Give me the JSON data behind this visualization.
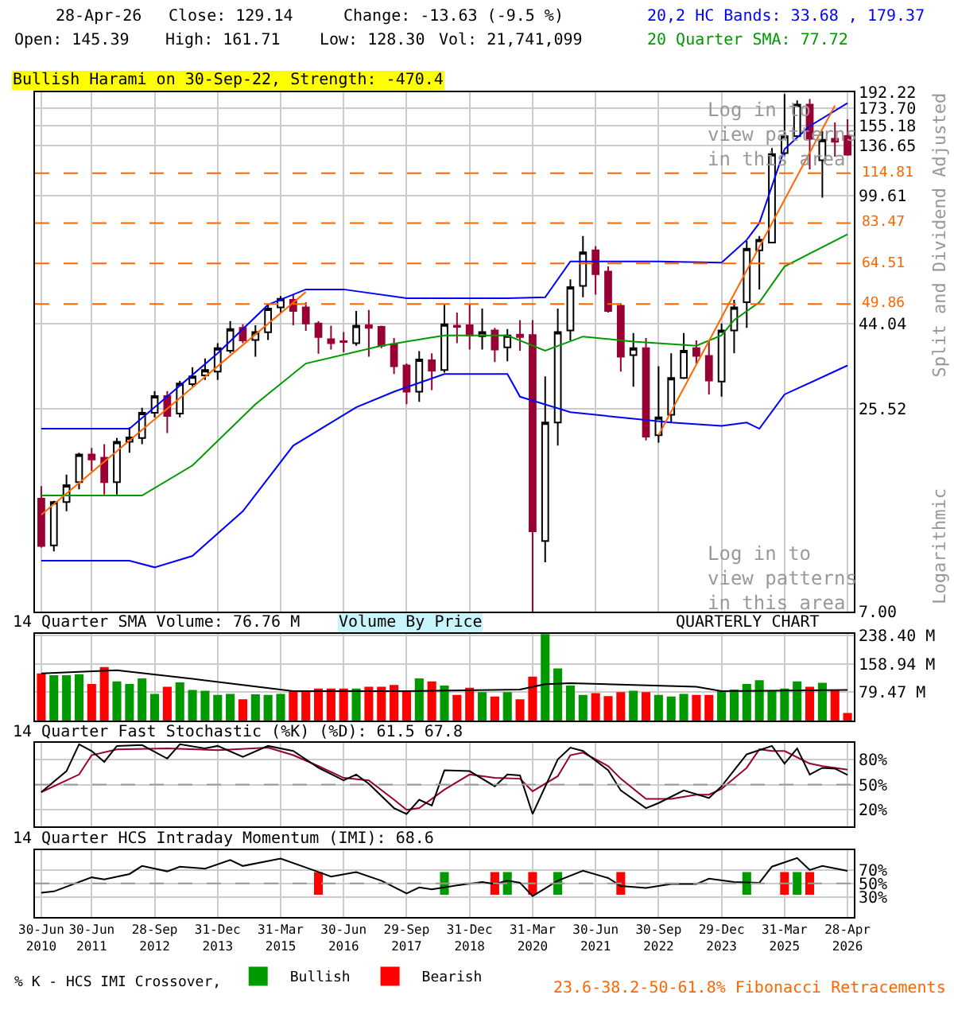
{
  "chart_data": [
    {
      "type": "candlestick",
      "title": "Bullish Harami on 30-Sep-22, Strength: -470.4",
      "ylabel": "Split and Dividend Adjusted",
      "ohlc": [
        [
          14.4,
          15.6,
          10.55,
          10.65
        ],
        [
          10.7,
          14.2,
          10.3,
          14.1
        ],
        [
          14.1,
          16.8,
          13.3,
          15.7
        ],
        [
          16.0,
          19.3,
          15.3,
          19.1
        ],
        [
          19.1,
          19.9,
          17.2,
          18.5
        ],
        [
          18.7,
          20.4,
          14.8,
          16.0
        ],
        [
          16.0,
          21.2,
          14.8,
          20.7
        ],
        [
          20.7,
          22.7,
          19.3,
          21.3
        ],
        [
          21.2,
          25.7,
          20.4,
          24.9
        ],
        [
          24.9,
          28.6,
          24.2,
          27.7
        ],
        [
          27.7,
          28.6,
          21.9,
          24.4
        ],
        [
          24.8,
          30.5,
          24.2,
          30.0
        ],
        [
          29.9,
          33.3,
          29.5,
          31.4
        ],
        [
          31.6,
          35.2,
          30.7,
          32.7
        ],
        [
          32.4,
          38.8,
          30.7,
          37.6
        ],
        [
          37.0,
          44.7,
          36.4,
          42.5
        ],
        [
          42.8,
          43.8,
          38.8,
          39.5
        ],
        [
          39.6,
          43.5,
          35.6,
          41.7
        ],
        [
          41.6,
          49.6,
          39.6,
          48.4
        ],
        [
          48.8,
          52.4,
          47.2,
          51.5
        ],
        [
          51.2,
          52.9,
          43.5,
          47.7
        ],
        [
          48.8,
          50.4,
          42.0,
          44.0
        ],
        [
          44.0,
          44.7,
          36.3,
          40.4
        ],
        [
          39.8,
          43.4,
          37.3,
          38.8
        ],
        [
          39.3,
          41.7,
          36.6,
          39.1
        ],
        [
          38.8,
          47.7,
          38.2,
          43.4
        ],
        [
          43.5,
          48.0,
          35.6,
          42.8
        ],
        [
          43.1,
          43.4,
          37.6,
          38.2
        ],
        [
          38.6,
          40.1,
          31.9,
          33.5
        ],
        [
          33.7,
          34.1,
          26.3,
          28.5
        ],
        [
          28.5,
          36.9,
          26.7,
          35.0
        ],
        [
          34.8,
          36.4,
          28.8,
          32.6
        ],
        [
          32.7,
          49.6,
          32.2,
          43.8
        ],
        [
          43.4,
          47.2,
          38.8,
          43.1
        ],
        [
          43.5,
          49.9,
          37.3,
          40.8
        ],
        [
          40.6,
          48.4,
          37.3,
          41.7
        ],
        [
          42.1,
          42.8,
          34.4,
          37.3
        ],
        [
          37.8,
          42.5,
          34.6,
          40.8
        ],
        [
          41.0,
          45.0,
          37.0,
          40.4
        ],
        [
          40.9,
          45.0,
          7.0,
          11.7
        ],
        [
          11.0,
          31.4,
          9.6,
          23.4
        ],
        [
          23.4,
          48.4,
          20.2,
          41.7
        ],
        [
          42.1,
          58.3,
          39.5,
          55.5
        ],
        [
          55.9,
          76.9,
          52.0,
          69.3
        ],
        [
          70.2,
          72.1,
          52.9,
          60.3
        ],
        [
          61.3,
          63.3,
          47.2,
          47.7
        ],
        [
          49.3,
          50.1,
          32.4,
          35.6
        ],
        [
          36.0,
          41.4,
          29.4,
          37.6
        ],
        [
          37.6,
          40.1,
          20.9,
          21.4
        ],
        [
          21.6,
          33.5,
          20.6,
          24.2
        ],
        [
          24.6,
          36.4,
          23.4,
          31.1
        ],
        [
          31.1,
          41.4,
          30.9,
          37.0
        ],
        [
          37.6,
          39.5,
          34.1,
          35.8
        ],
        [
          35.8,
          39.5,
          28.0,
          30.6
        ],
        [
          30.4,
          44.0,
          27.6,
          42.1
        ],
        [
          42.1,
          51.2,
          36.4,
          48.8
        ],
        [
          50.4,
          74.5,
          42.8,
          70.9
        ],
        [
          70.2,
          76.9,
          54.7,
          75.0
        ],
        [
          73.7,
          134.7,
          73.7,
          129.6
        ],
        [
          130.5,
          190,
          127.5,
          145.3
        ],
        [
          145.3,
          182.4,
          143.8,
          177.8
        ],
        [
          177.8,
          184.2,
          117.5,
          142.9
        ],
        [
          124.6,
          150.1,
          98.2,
          142.0
        ],
        [
          142.9,
          158.6,
          127.5,
          140.2
        ],
        [
          145.39,
          161.71,
          128.3,
          129.14
        ]
      ],
      "series": [
        {
          "type": "line",
          "color": "#0000ff",
          "values": [
            22.5,
            null,
            null,
            null,
            null,
            null,
            null,
            22.5,
            null,
            25.8,
            null,
            null,
            null,
            null,
            36.4,
            null,
            null,
            null,
            49.6,
            null,
            null,
            54.7,
            null,
            null,
            54.7,
            null,
            null,
            null,
            null,
            51.7,
            null,
            null,
            null,
            null,
            null,
            null,
            null,
            51.7,
            null,
            null,
            52.0,
            null,
            65.4,
            null,
            null,
            null,
            null,
            null,
            null,
            65.4,
            null,
            null,
            null,
            null,
            64.9,
            null,
            75.0,
            83.5,
            null,
            133.8,
            null,
            155,
            null,
            null,
            179.37
          ]
        },
        {
          "type": "line",
          "color": "#0000ff",
          "values": [
            9.7,
            null,
            null,
            null,
            null,
            null,
            null,
            9.7,
            null,
            9.3,
            null,
            null,
            10.0,
            null,
            null,
            null,
            13.3,
            null,
            null,
            null,
            20.2,
            null,
            null,
            null,
            null,
            25.8,
            null,
            null,
            28.5,
            null,
            null,
            null,
            31.9,
            null,
            null,
            null,
            null,
            31.9,
            27.6,
            null,
            null,
            null,
            25.0,
            null,
            null,
            null,
            null,
            null,
            null,
            null,
            23.4,
            null,
            null,
            null,
            22.9,
            null,
            23.4,
            22.5,
            null,
            28.0,
            null,
            null,
            null,
            null,
            33.68
          ]
        },
        {
          "type": "line",
          "color": "#009900",
          "values": [
            14.7,
            null,
            null,
            null,
            null,
            null,
            null,
            null,
            14.7,
            null,
            null,
            null,
            17.8,
            null,
            null,
            null,
            null,
            26.3,
            null,
            null,
            null,
            34.1,
            null,
            null,
            null,
            null,
            null,
            38.2,
            null,
            null,
            null,
            null,
            40.8,
            null,
            null,
            null,
            null,
            40.8,
            null,
            null,
            37.0,
            null,
            null,
            40.5,
            null,
            null,
            null,
            39.2,
            null,
            null,
            null,
            null,
            38.2,
            null,
            40.8,
            45.0,
            null,
            50.4,
            null,
            63.3,
            null,
            null,
            null,
            null,
            77.72
          ]
        },
        {
          "type": "line",
          "color": "#ff6600",
          "values": [
            13.0,
            null,
            null,
            null,
            null,
            null,
            null,
            null,
            null,
            null,
            null,
            null,
            null,
            null,
            null,
            null,
            null,
            null,
            null,
            null,
            null,
            53.8,
            null,
            null,
            null,
            null,
            null,
            null,
            null,
            null,
            null,
            null,
            null,
            null,
            null,
            null,
            null,
            null,
            null,
            null,
            null,
            null,
            null,
            null,
            null,
            null,
            null,
            null,
            null,
            null,
            null,
            null,
            null,
            null,
            null,
            null,
            null,
            null,
            null,
            null,
            null,
            null,
            null,
            null,
            null
          ]
        },
        {
          "type": "line",
          "color": "#ff6600",
          "values": [
            null,
            null,
            null,
            null,
            null,
            null,
            null,
            null,
            null,
            null,
            null,
            null,
            null,
            null,
            null,
            null,
            null,
            null,
            null,
            null,
            null,
            null,
            null,
            null,
            null,
            null,
            null,
            null,
            null,
            null,
            null,
            null,
            null,
            null,
            null,
            null,
            null,
            null,
            null,
            null,
            null,
            null,
            null,
            null,
            null,
            null,
            null,
            null,
            null,
            21.6,
            null,
            null,
            null,
            null,
            null,
            null,
            null,
            null,
            null,
            null,
            null,
            null,
            null,
            176.6,
            null
          ]
        }
      ],
      "log": true,
      "ylim": [
        7,
        192.22
      ],
      "yticks": [
        {
          "value": 7,
          "label": "7.00"
        },
        25.52,
        44.04,
        99.61,
        136.65,
        155.18,
        {
          "value": 173.7,
          "label": "173.70"
        },
        192.22
      ],
      "grid": true,
      "tick_labels": "y",
      "ref_lines": [
        {
          "axis": "y",
          "value": 114.81,
          "label": "114.81",
          "color": "#ff6600",
          "line_style": "dashed"
        },
        {
          "axis": "y",
          "value": 83.47,
          "label": "83.47",
          "color": "#ff6600",
          "line_style": "dashed"
        },
        {
          "axis": "y",
          "value": 64.51,
          "label": "64.51",
          "color": "#ff6600",
          "line_style": "dashed"
        },
        {
          "axis": "y",
          "value": 49.86,
          "label": "49.86",
          "color": "#ff6600",
          "line_style": "dashed"
        }
      ],
      "annotations": [
        "28-Apr-26",
        "Close: 129.14",
        "Change: -13.63 (-9.5 %)",
        "Open: 145.39",
        "High: 161.71",
        "Low: 128.30",
        "Vol: 21,741,099",
        "20,2 HC Bands: 33.68 , 179.37",
        "20 Quarter SMA: 77.72",
        "Log in to view patterns in this area",
        "Log in to view patterns in this area",
        "Logarithmic"
      ]
    },
    {
      "type": "bar",
      "title": "14 Quarter SMA Volume: 76.76 M",
      "series": [
        {
          "type": "bar",
          "values": [
            132,
            127,
            127,
            130,
            103,
            150,
            110,
            103,
            118,
            75,
            95,
            107,
            86,
            84,
            72,
            75,
            60,
            74,
            72,
            75,
            83,
            83,
            90,
            90,
            90,
            90,
            95,
            95,
            100,
            83,
            118,
            110,
            98,
            72,
            92,
            80,
            68,
            80,
            60,
            123,
            242,
            146,
            98,
            72,
            77,
            69,
            80,
            84,
            80,
            72,
            68,
            75,
            72,
            72,
            84,
            87,
            103,
            113,
            83,
            90,
            110,
            95,
            106,
            86,
            22
          ],
          "colors": [
            "#ff0000",
            "#009900",
            "#009900",
            "#009900",
            "#ff0000",
            "#ff0000",
            "#009900",
            "#009900",
            "#009900",
            "#009900",
            "#ff0000",
            "#009900",
            "#009900",
            "#009900",
            "#009900",
            "#009900",
            "#ff0000",
            "#009900",
            "#009900",
            "#009900",
            "#ff0000",
            "#ff0000",
            "#ff0000",
            "#ff0000",
            "#ff0000",
            "#009900",
            "#ff0000",
            "#ff0000",
            "#ff0000",
            "#ff0000",
            "#009900",
            "#ff0000",
            "#009900",
            "#ff0000",
            "#ff0000",
            "#009900",
            "#ff0000",
            "#009900",
            "#ff0000",
            "#ff0000",
            "#009900",
            "#009900",
            "#009900",
            "#009900",
            "#ff0000",
            "#ff0000",
            "#ff0000",
            "#009900",
            "#ff0000",
            "#009900",
            "#009900",
            "#009900",
            "#ff0000",
            "#ff0000",
            "#009900",
            "#009900",
            "#009900",
            "#009900",
            "#009900",
            "#009900",
            "#009900",
            "#ff0000",
            "#009900",
            "#ff0000",
            "#ff0000"
          ]
        },
        {
          "type": "line",
          "color": "#000000",
          "values": [
            132,
            null,
            null,
            null,
            null,
            null,
            141,
            null,
            null,
            null,
            null,
            null,
            117,
            null,
            null,
            null,
            null,
            null,
            null,
            null,
            83,
            null,
            null,
            null,
            null,
            null,
            null,
            null,
            null,
            83,
            null,
            null,
            null,
            null,
            null,
            null,
            null,
            null,
            87,
            null,
            102,
            null,
            105,
            null,
            null,
            null,
            null,
            null,
            null,
            null,
            null,
            null,
            95,
            null,
            83,
            null,
            null,
            null,
            null,
            null,
            null,
            null,
            null,
            null,
            86
          ]
        }
      ],
      "ylim": [
        0,
        243
      ],
      "yticks": [
        {
          "value": 79.47,
          "label": "79.47 M"
        },
        {
          "value": 158.94,
          "label": "158.94 M"
        },
        {
          "value": 238.4,
          "label": "238.40 M"
        }
      ],
      "grid": true,
      "tick_labels": "y",
      "annotations": [
        "Volume By Price",
        "QUARTERLY CHART"
      ]
    },
    {
      "type": "line",
      "title": "14 Quarter Fast Stochastic (%K) (%D): 61.5 67.8",
      "series": [
        {
          "color": "#990033",
          "values": [
            41,
            null,
            null,
            62,
            85,
            null,
            92,
            null,
            null,
            null,
            93,
            null,
            null,
            null,
            91,
            null,
            null,
            null,
            94,
            null,
            85,
            null,
            72,
            null,
            58,
            null,
            55,
            null,
            32,
            20,
            22,
            null,
            44,
            null,
            62,
            null,
            58,
            null,
            57,
            42,
            null,
            60,
            85,
            88,
            null,
            72,
            57,
            null,
            33,
            null,
            33,
            null,
            38,
            38,
            45,
            null,
            70,
            92,
            90,
            90,
            null,
            75,
            72,
            70,
            67.8
          ]
        },
        {
          "color": "#000000",
          "values": [
            41,
            null,
            66,
            98,
            90,
            77,
            96,
            null,
            97,
            null,
            81,
            98,
            null,
            93,
            96,
            null,
            83,
            null,
            96,
            null,
            90,
            null,
            70,
            null,
            55,
            62,
            51,
            null,
            22,
            15,
            32,
            25,
            67,
            null,
            66,
            null,
            48,
            62,
            61,
            15,
            null,
            80,
            94,
            90,
            null,
            67,
            43,
            null,
            22,
            28,
            null,
            43,
            null,
            34,
            48,
            null,
            86,
            null,
            96,
            75,
            93,
            62,
            70,
            69,
            61.5
          ]
        }
      ],
      "ylim": [
        0,
        100
      ],
      "yticks": [
        {
          "value": 20,
          "label": "20%"
        },
        {
          "value": 50,
          "label": "50%"
        },
        {
          "value": 80,
          "label": "80%"
        }
      ],
      "grid": true,
      "tick_labels": "y",
      "ref_lines": [
        {
          "axis": "y",
          "value": 50,
          "color": "#999999",
          "line_style": "dashed"
        }
      ]
    },
    {
      "type": "line",
      "title": "14 Quarter HCS Intraday Momentum (IMI): 68.6",
      "categories": [
        "30-Jun 2010",
        null,
        null,
        null,
        "30-Jun 2011",
        null,
        null,
        null,
        null,
        "28-Sep 2012",
        null,
        null,
        null,
        null,
        "31-Dec 2013",
        null,
        null,
        null,
        null,
        "31-Mar 2015",
        null,
        null,
        null,
        null,
        "30-Jun 2016",
        null,
        null,
        null,
        null,
        "29-Sep 2017",
        null,
        null,
        null,
        null,
        "31-Dec 2018",
        null,
        null,
        null,
        null,
        "31-Mar 2020",
        null,
        null,
        null,
        null,
        "30-Jun 2021",
        null,
        null,
        null,
        null,
        "30-Sep 2022",
        null,
        null,
        null,
        null,
        "29-Dec 2023",
        null,
        null,
        null,
        null,
        "31-Mar 2025",
        null,
        null,
        null,
        null,
        "28-Apr 2026"
      ],
      "series": [
        {
          "type": "bar",
          "name": "Bullish",
          "color": "#009900",
          "values": [
            null,
            null,
            null,
            null,
            null,
            null,
            null,
            null,
            null,
            null,
            null,
            null,
            null,
            null,
            null,
            null,
            null,
            null,
            null,
            null,
            null,
            null,
            null,
            null,
            null,
            null,
            null,
            null,
            null,
            null,
            null,
            null,
            34,
            null,
            null,
            null,
            null,
            34,
            null,
            null,
            null,
            34,
            null,
            null,
            null,
            null,
            null,
            null,
            null,
            null,
            null,
            null,
            null,
            null,
            null,
            null,
            34,
            null,
            null,
            null,
            34,
            null,
            null,
            null,
            null
          ],
          "base": [
            null,
            null,
            null,
            null,
            null,
            null,
            null,
            null,
            null,
            null,
            null,
            null,
            null,
            null,
            null,
            null,
            null,
            null,
            null,
            null,
            null,
            null,
            null,
            null,
            null,
            null,
            null,
            null,
            null,
            null,
            null,
            null,
            33,
            null,
            null,
            null,
            null,
            33,
            null,
            null,
            null,
            33,
            null,
            null,
            null,
            null,
            null,
            null,
            null,
            null,
            null,
            null,
            null,
            null,
            null,
            null,
            33,
            null,
            null,
            null,
            33,
            null,
            null,
            null,
            null
          ]
        },
        {
          "type": "bar",
          "name": "Bearish",
          "color": "#ff0000",
          "values": [
            null,
            null,
            null,
            null,
            null,
            null,
            null,
            null,
            null,
            null,
            null,
            null,
            null,
            null,
            null,
            null,
            null,
            null,
            null,
            null,
            null,
            null,
            34,
            null,
            null,
            null,
            null,
            null,
            null,
            null,
            null,
            null,
            null,
            null,
            null,
            null,
            34,
            null,
            null,
            34,
            null,
            null,
            null,
            null,
            null,
            null,
            34,
            null,
            null,
            null,
            null,
            null,
            null,
            null,
            null,
            null,
            null,
            null,
            null,
            34,
            null,
            34,
            null,
            null,
            null
          ],
          "base": [
            null,
            null,
            null,
            null,
            null,
            null,
            null,
            null,
            null,
            null,
            null,
            null,
            null,
            null,
            null,
            null,
            null,
            null,
            null,
            null,
            null,
            null,
            33,
            null,
            null,
            null,
            null,
            null,
            null,
            null,
            null,
            null,
            null,
            null,
            null,
            null,
            33,
            null,
            null,
            33,
            null,
            null,
            null,
            null,
            null,
            null,
            33,
            null,
            null,
            null,
            null,
            null,
            null,
            null,
            null,
            null,
            null,
            null,
            null,
            33,
            null,
            33,
            null,
            null,
            null
          ]
        },
        {
          "type": "line",
          "color": "#000000",
          "values": [
            36,
            38,
            null,
            null,
            59,
            56,
            null,
            64,
            76,
            null,
            68,
            75,
            null,
            72,
            null,
            85,
            76,
            null,
            null,
            87,
            null,
            null,
            67,
            60,
            null,
            67,
            null,
            54,
            null,
            35,
            44,
            41,
            null,
            47,
            null,
            52,
            49,
            54,
            51,
            31,
            null,
            54,
            null,
            69,
            null,
            58,
            46,
            null,
            43,
            null,
            49,
            null,
            49,
            57,
            null,
            52,
            null,
            51,
            75,
            null,
            88,
            70,
            76,
            null,
            68.6
          ]
        }
      ],
      "ylim": [
        0,
        100
      ],
      "yticks": [
        {
          "value": 30,
          "label": "30%"
        },
        {
          "value": 50,
          "label": "50%"
        },
        {
          "value": 70,
          "label": "70%"
        }
      ],
      "grid": true,
      "legend": "bottom",
      "legend_title": "% K - HCS IMI Crossover,",
      "ref_lines": [
        {
          "axis": "y",
          "value": 50,
          "color": "#999999",
          "line_style": "dashed"
        }
      ],
      "annotations": [
        "23.6-38.2-50-61.8% Fibonacci Retracements"
      ]
    }
  ]
}
